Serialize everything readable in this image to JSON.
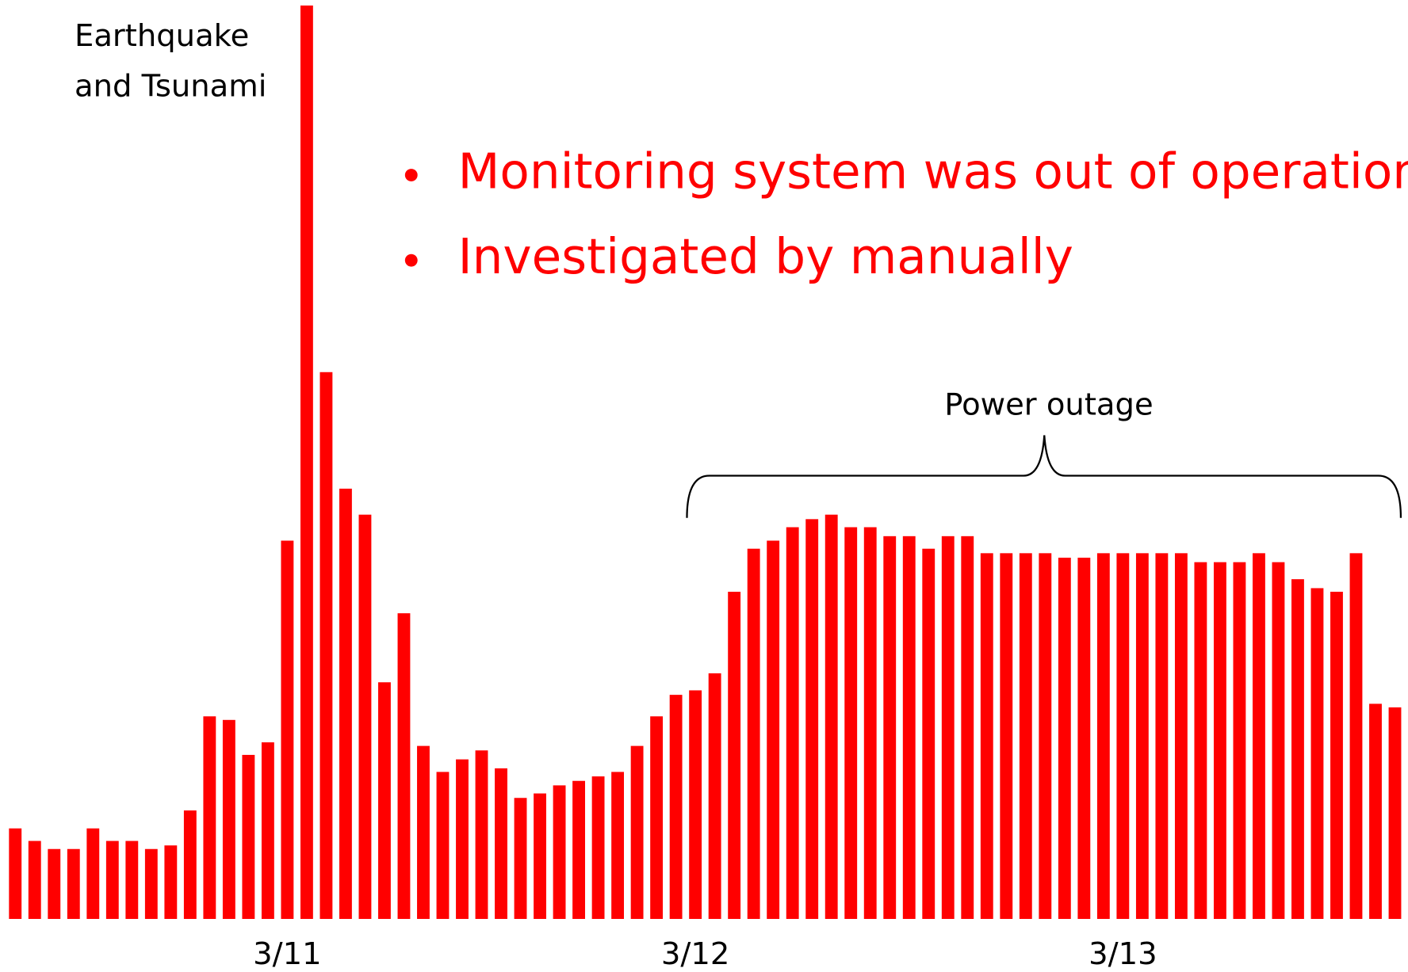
{
  "chart_data": {
    "type": "bar",
    "annotation": [
      "Earthquake",
      "and Tsunami"
    ],
    "bullets": [
      "Monitoring system was out of operation",
      "Investigated by manually"
    ],
    "bracket_label": "Power outage",
    "color": "#ff0000",
    "ylim": [
      0,
      1020
    ],
    "categories": [
      null,
      null,
      null,
      null,
      null,
      null,
      null,
      null,
      null,
      null,
      null,
      null,
      null,
      null,
      "3/11",
      null,
      null,
      null,
      null,
      null,
      null,
      null,
      null,
      null,
      null,
      null,
      null,
      null,
      null,
      null,
      null,
      null,
      null,
      null,
      null,
      "3/12",
      null,
      null,
      null,
      null,
      null,
      null,
      null,
      null,
      null,
      null,
      null,
      null,
      null,
      null,
      null,
      null,
      null,
      null,
      null,
      null,
      null,
      "3/13",
      null,
      null,
      null,
      null,
      null,
      null,
      null,
      null,
      null,
      null,
      null,
      null,
      null,
      null
    ],
    "values": [
      101,
      87,
      78,
      78,
      101,
      87,
      87,
      78,
      82,
      121,
      226,
      222,
      183,
      197,
      422,
      1019,
      610,
      480,
      451,
      264,
      341,
      193,
      164,
      178,
      188,
      168,
      135,
      140,
      149,
      154,
      159,
      164,
      193,
      226,
      250,
      255,
      274,
      365,
      413,
      422,
      437,
      446,
      451,
      437,
      437,
      427,
      427,
      413,
      427,
      427,
      408,
      408,
      408,
      408,
      403,
      403,
      408,
      408,
      408,
      408,
      408,
      398,
      398,
      398,
      408,
      398,
      379,
      369,
      365,
      408,
      240,
      236
    ]
  }
}
